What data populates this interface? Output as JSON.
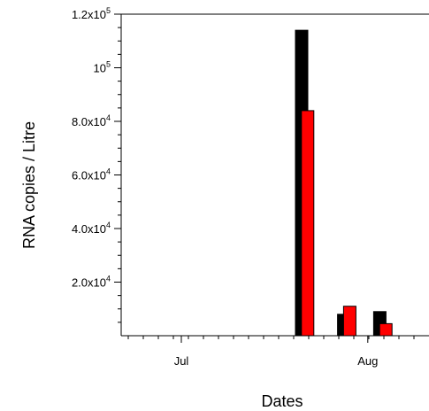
{
  "chart_data": {
    "type": "bar",
    "title": "",
    "xlabel": "Dates",
    "ylabel": "RNA copies / Litre",
    "ylim": [
      0,
      120000
    ],
    "x_tick_labels": [
      {
        "label": "Jul",
        "date": "2020-07-01"
      },
      {
        "label": "Aug",
        "date": "2020-08-01"
      }
    ],
    "y_tick_labels": [
      {
        "value": 20000,
        "mantissa": "2.0x10",
        "exp": "4"
      },
      {
        "value": 40000,
        "mantissa": "4.0x10",
        "exp": "4"
      },
      {
        "value": 60000,
        "mantissa": "6.0x10",
        "exp": "4"
      },
      {
        "value": 80000,
        "mantissa": "8.0x10",
        "exp": "4"
      },
      {
        "value": 100000,
        "mantissa": "10",
        "exp": "5"
      },
      {
        "value": 120000,
        "mantissa": "1.2x10",
        "exp": "5"
      }
    ],
    "grid": false,
    "legend": "none",
    "series": [
      {
        "color": "#000000",
        "points": [
          {
            "date": "2020-07-21",
            "value": 114000
          },
          {
            "date": "2020-07-28",
            "value": 8000
          },
          {
            "date": "2020-08-03",
            "value": 9000
          }
        ]
      },
      {
        "color": "#ff0000",
        "points": [
          {
            "date": "2020-07-22",
            "value": 84000
          },
          {
            "date": "2020-07-29",
            "value": 11000
          },
          {
            "date": "2020-08-04",
            "value": 4500
          }
        ]
      }
    ]
  }
}
